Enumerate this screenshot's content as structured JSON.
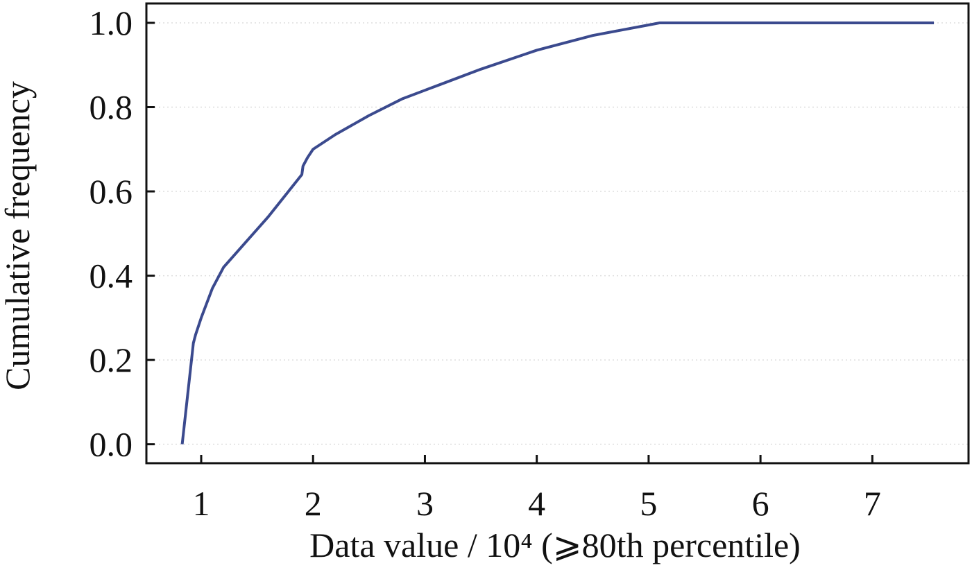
{
  "chart_data": {
    "type": "line",
    "xlabel": "Data value / 10⁴ (⩾80th percentile)",
    "ylabel": "Cumulative frequency",
    "x": [
      0.83,
      0.93,
      0.95,
      1.0,
      1.1,
      1.2,
      1.4,
      1.6,
      1.75,
      1.9,
      1.91,
      1.95,
      2.0,
      2.2,
      2.5,
      2.8,
      3.0,
      3.5,
      4.0,
      4.5,
      5.0,
      5.1,
      6.0,
      7.55
    ],
    "series": [
      {
        "color": "#3b4a8e",
        "values": [
          0.0,
          0.24,
          0.26,
          0.3,
          0.37,
          0.42,
          0.48,
          0.54,
          0.59,
          0.64,
          0.66,
          0.68,
          0.7,
          0.735,
          0.78,
          0.82,
          0.84,
          0.89,
          0.935,
          0.97,
          0.995,
          1.0,
          1.0,
          1.0
        ]
      }
    ],
    "xlim": [
      0.51,
      7.86
    ],
    "ylim": [
      -0.045,
      1.046
    ],
    "xticks": [
      1,
      2,
      3,
      4,
      5,
      6,
      7
    ],
    "yticks": [
      {
        "value": 0,
        "label": "0.0"
      },
      0.2,
      0.4,
      0.6,
      0.8,
      {
        "value": 1,
        "label": "1.0"
      }
    ],
    "grid": true
  }
}
